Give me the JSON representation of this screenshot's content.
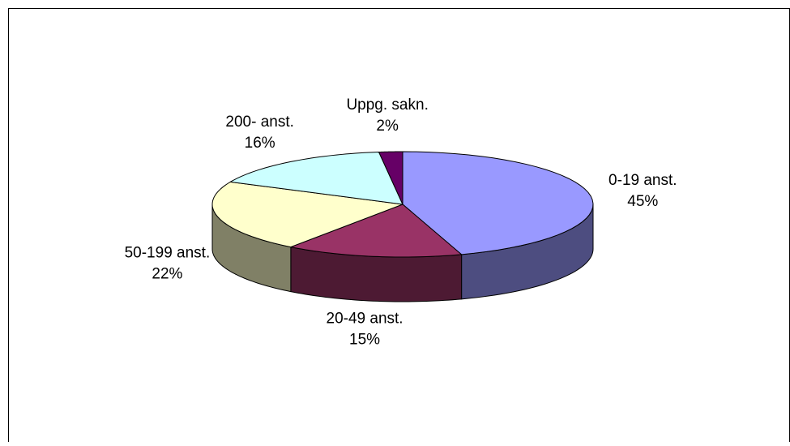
{
  "chart_data": {
    "type": "pie",
    "categories": [
      "0-19 anst.",
      "20-49 anst.",
      "50-199 anst.",
      "200- anst.",
      "Uppg. sakn."
    ],
    "values": [
      45,
      15,
      22,
      16,
      2
    ],
    "value_labels": [
      "45%",
      "15%",
      "22%",
      "16%",
      "2%"
    ],
    "colors": [
      "#9999ff",
      "#993366",
      "#ffffcc",
      "#ccffff",
      "#660066"
    ]
  }
}
